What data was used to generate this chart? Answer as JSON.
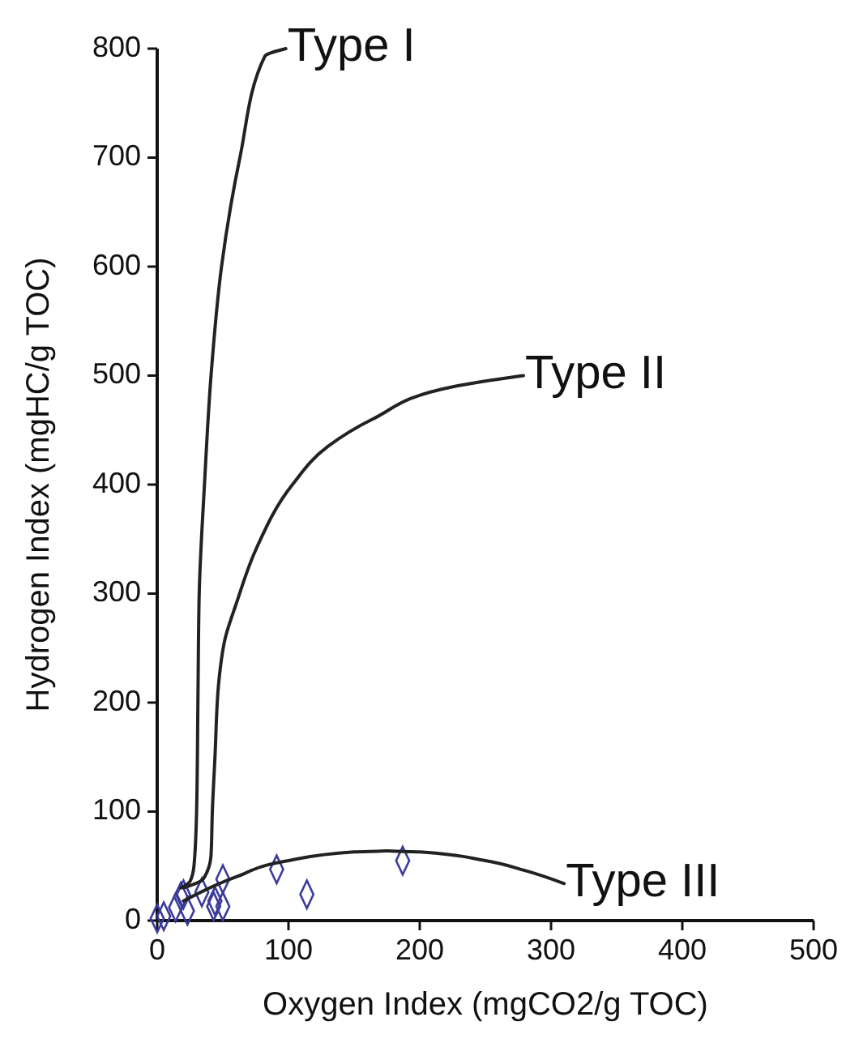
{
  "chart_data": {
    "type": "scatter",
    "xlabel": "Oxygen Index (mgCO2/g TOC)",
    "ylabel": "Hydrogen Index (mgHC/g TOC)",
    "xlim": [
      0,
      500
    ],
    "ylim": [
      0,
      800
    ],
    "xticks": [
      0,
      100,
      200,
      300,
      400,
      500
    ],
    "yticks": [
      0,
      100,
      200,
      300,
      400,
      500,
      600,
      700,
      800
    ],
    "grid": false,
    "legend": false,
    "series": [
      {
        "color": "#3c3c9c",
        "marker": "diamond",
        "x": [
          0,
          5,
          14,
          18,
          20,
          23,
          34,
          43,
          44,
          50,
          50,
          91,
          114,
          187
        ],
        "values": [
          2,
          4,
          12,
          22,
          24,
          9,
          26,
          13,
          18,
          38,
          13,
          47,
          24,
          55
        ]
      },
      {
        "type": "line",
        "name": "Type I",
        "color": "#222222",
        "marker": "none",
        "x": [
          18,
          25,
          28,
          30,
          31,
          32,
          36,
          41,
          49,
          63,
          82,
          98
        ],
        "values": [
          30,
          36,
          50,
          100,
          200,
          300,
          400,
          500,
          600,
          700,
          793,
          800
        ]
      },
      {
        "type": "line",
        "name": "Type II",
        "color": "#222222",
        "marker": "none",
        "x": [
          20,
          35,
          41,
          42,
          44,
          47,
          52,
          60,
          75,
          103,
          130,
          164,
          226,
          279
        ],
        "values": [
          30,
          38,
          60,
          100,
          150,
          220,
          260,
          290,
          340,
          400,
          435,
          460,
          490,
          500
        ]
      },
      {
        "type": "line",
        "name": "Type III",
        "color": "#222222",
        "marker": "none",
        "x": [
          20,
          40,
          60,
          100,
          150,
          175,
          200,
          250,
          280,
          310
        ],
        "values": [
          18,
          30,
          40,
          55,
          63,
          64,
          63,
          55,
          46,
          34
        ]
      }
    ]
  }
}
